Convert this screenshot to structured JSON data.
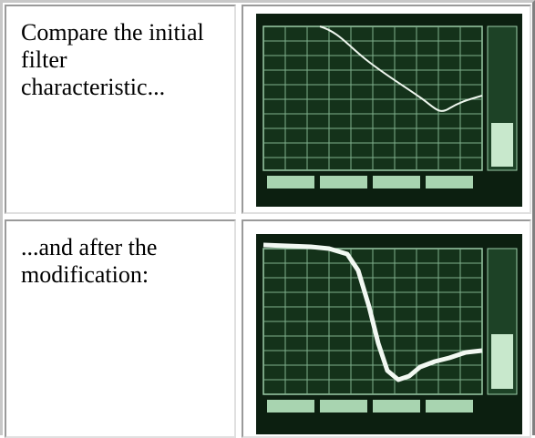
{
  "table": {
    "rows": [
      [
        "Compare the initial filter characteristic..."
      ],
      [
        "...and after the modification:"
      ]
    ]
  }
}
